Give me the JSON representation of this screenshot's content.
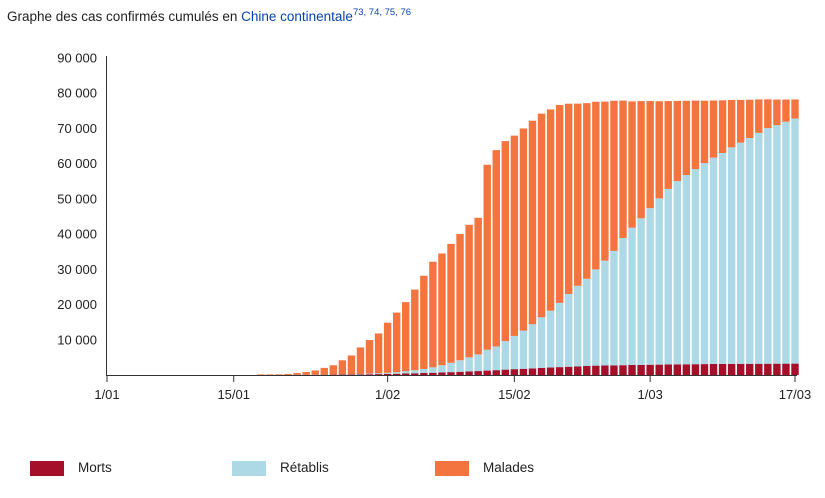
{
  "caption": {
    "text": "Graphe des cas confirmés cumulés en ",
    "link": "Chine continentale",
    "refs": "73, 74, 75, 76"
  },
  "colors": {
    "morts": "#a50f2a",
    "retablis": "#add8e6",
    "malades": "#f4743f",
    "axis": "#333333",
    "link": "#0645ad"
  },
  "chart_data": {
    "type": "bar",
    "stacked": true,
    "title": "",
    "xlabel": "",
    "ylabel": "",
    "ylim": [
      0,
      90000
    ],
    "yticks": [
      10000,
      20000,
      30000,
      40000,
      50000,
      60000,
      70000,
      80000,
      90000
    ],
    "ytick_labels": [
      "10 000",
      "20 000",
      "30 000",
      "40 000",
      "50 000",
      "60 000",
      "70 000",
      "80 000",
      "90 000"
    ],
    "xticks": [
      {
        "label": "1/01",
        "date": "2020-01-01"
      },
      {
        "label": "15/01",
        "date": "2020-01-15"
      },
      {
        "label": "1/02",
        "date": "2020-02-01"
      },
      {
        "label": "15/02",
        "date": "2020-02-15"
      },
      {
        "label": "1/03",
        "date": "2020-03-01"
      },
      {
        "label": "17/03",
        "date": "2020-03-17"
      }
    ],
    "legend_position": "bottom",
    "first_date": "2020-01-18",
    "dates": [
      "18/01",
      "19/01",
      "20/01",
      "21/01",
      "22/01",
      "23/01",
      "24/01",
      "25/01",
      "26/01",
      "27/01",
      "28/01",
      "29/01",
      "30/01",
      "31/01",
      "01/02",
      "02/02",
      "03/02",
      "04/02",
      "05/02",
      "06/02",
      "07/02",
      "08/02",
      "09/02",
      "10/02",
      "11/02",
      "12/02",
      "13/02",
      "14/02",
      "15/02",
      "16/02",
      "17/02",
      "18/02",
      "19/02",
      "20/02",
      "21/02",
      "22/02",
      "23/02",
      "24/02",
      "25/02",
      "26/02",
      "27/02",
      "28/02",
      "29/02",
      "01/03",
      "02/03",
      "03/03",
      "04/03",
      "05/03",
      "06/03",
      "07/03",
      "08/03",
      "09/03",
      "10/03",
      "11/03",
      "12/03",
      "13/03",
      "14/03",
      "15/03",
      "16/03",
      "17/03"
    ],
    "series": [
      {
        "name": "Morts",
        "values": [
          0,
          0,
          0,
          0,
          17,
          25,
          41,
          56,
          80,
          106,
          132,
          170,
          213,
          259,
          304,
          361,
          425,
          490,
          563,
          636,
          722,
          811,
          908,
          1016,
          1113,
          1259,
          1380,
          1523,
          1665,
          1770,
          1868,
          2004,
          2118,
          2236,
          2345,
          2442,
          2592,
          2663,
          2715,
          2744,
          2788,
          2835,
          2870,
          2912,
          2943,
          2981,
          3012,
          3042,
          3070,
          3097,
          3119,
          3136,
          3158,
          3169,
          3176,
          3189,
          3199,
          3213,
          3226,
          3237
        ]
      },
      {
        "name": "Rétablis",
        "values": [
          0,
          0,
          0,
          0,
          28,
          34,
          38,
          49,
          51,
          60,
          103,
          124,
          171,
          243,
          328,
          475,
          632,
          892,
          1153,
          1540,
          2050,
          2649,
          3281,
          3996,
          4740,
          5911,
          6723,
          8096,
          9419,
          10844,
          12552,
          14376,
          16155,
          18264,
          20659,
          22888,
          24734,
          27323,
          29745,
          32495,
          36117,
          39002,
          41625,
          44462,
          47204,
          49856,
          52045,
          53726,
          55404,
          57065,
          58600,
          59897,
          61475,
          62793,
          64111,
          65541,
          66911,
          67749,
          68679,
          69601
        ]
      },
      {
        "name": "Malades",
        "values": [
          45,
          62,
          198,
          291,
          505,
          790,
          1208,
          1917,
          2634,
          4015,
          5309,
          7531,
          9536,
          11290,
          14221,
          16881,
          19636,
          22874,
          26463,
          29985,
          31724,
          33770,
          35836,
          37639,
          38779,
          52514,
          55748,
          56787,
          56872,
          57384,
          57781,
          57820,
          57121,
          56151,
          54012,
          51715,
          49860,
          47596,
          45156,
          42620,
          39000,
          35848,
          33279,
          30424,
          27587,
          24939,
          22755,
          21089,
          19429,
          17713,
          16212,
          14960,
          13461,
          12137,
          10878,
          9512,
          8153,
          7236,
          6307,
          5393
        ]
      }
    ]
  },
  "legend": [
    {
      "label": "Morts",
      "color": "#a50f2a"
    },
    {
      "label": "Rétablis",
      "color": "#add8e6"
    },
    {
      "label": "Malades",
      "color": "#f4743f"
    }
  ]
}
